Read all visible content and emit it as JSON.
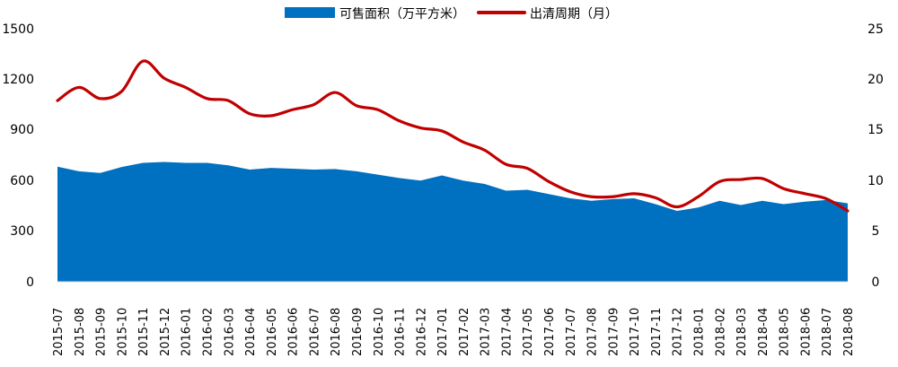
{
  "chart_data": {
    "type": "area",
    "x": [
      "2015-07",
      "2015-08",
      "2015-09",
      "2015-10",
      "2015-11",
      "2015-12",
      "2016-01",
      "2016-02",
      "2016-03",
      "2016-04",
      "2016-05",
      "2016-06",
      "2016-07",
      "2016-08",
      "2016-09",
      "2016-10",
      "2016-11",
      "2016-12",
      "2017-01",
      "2017-02",
      "2017-03",
      "2017-04",
      "2017-05",
      "2017-06",
      "2017-07",
      "2017-08",
      "2017-09",
      "2017-10",
      "2017-11",
      "2017-12",
      "2018-01",
      "2018-02",
      "2018-03",
      "2018-04",
      "2018-05",
      "2018-06",
      "2018-07",
      "2018-08"
    ],
    "series": [
      {
        "name": "可售面积（万平方米）",
        "type": "area",
        "axis": "left",
        "color": "#0070C0",
        "values": [
          682,
          655,
          645,
          680,
          705,
          710,
          705,
          705,
          690,
          665,
          675,
          670,
          665,
          668,
          655,
          635,
          615,
          600,
          630,
          600,
          580,
          540,
          545,
          520,
          495,
          480,
          490,
          495,
          460,
          420,
          440,
          480,
          455,
          480,
          460,
          475,
          485,
          465
        ]
      },
      {
        "name": "出清周期（月）",
        "type": "line",
        "axis": "right",
        "color": "#C00000",
        "values": [
          17.9,
          19.2,
          18.1,
          18.8,
          21.8,
          20.1,
          19.2,
          18.1,
          17.9,
          16.6,
          16.4,
          17.0,
          17.5,
          18.7,
          17.4,
          17.0,
          15.9,
          15.2,
          14.9,
          13.8,
          13.0,
          11.6,
          11.2,
          9.9,
          8.9,
          8.4,
          8.4,
          8.7,
          8.3,
          7.4,
          8.4,
          9.9,
          10.1,
          10.2,
          9.2,
          8.7,
          8.2,
          7.0
        ]
      }
    ],
    "y_left": {
      "ticks": [
        "0",
        "300",
        "600",
        "900",
        "1200",
        "1500"
      ],
      "ylim": [
        0,
        1500
      ]
    },
    "y_right": {
      "ticks": [
        "0",
        "5",
        "10",
        "15",
        "20",
        "25"
      ],
      "ylim": [
        0,
        25
      ]
    },
    "legend_position": "top-center",
    "grid": false
  }
}
